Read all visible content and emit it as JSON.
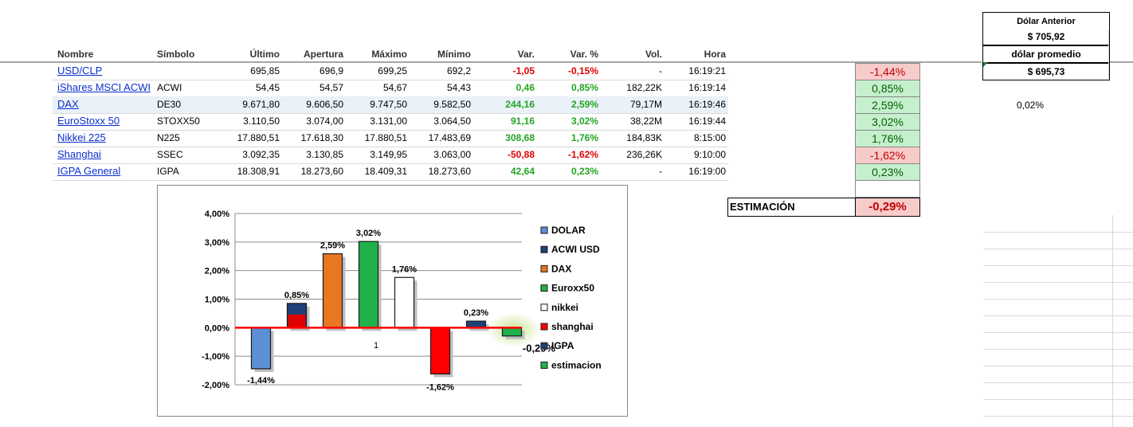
{
  "table": {
    "headers": [
      "Nombre",
      "Símbolo",
      "Último",
      "Apertura",
      "Máximo",
      "Mínimo",
      "Var.",
      "Var. %",
      "Vol.",
      "Hora"
    ],
    "rows": [
      {
        "name": "USD/CLP",
        "symbol": "",
        "last": "695,85",
        "open": "696,9",
        "high": "699,25",
        "low": "692,2",
        "var": "-1,05",
        "varp": "-0,15%",
        "vol": "-",
        "time": "16:19:21",
        "sign": "neg"
      },
      {
        "name": "iShares MSCI ACWI",
        "symbol": "ACWI",
        "last": "54,45",
        "open": "54,57",
        "high": "54,67",
        "low": "54,43",
        "var": "0,46",
        "varp": "0,85%",
        "vol": "182,22K",
        "time": "16:19:14",
        "sign": "pos"
      },
      {
        "name": "DAX",
        "symbol": "DE30",
        "last": "9.671,80",
        "open": "9.606,50",
        "high": "9.747,50",
        "low": "9.582,50",
        "var": "244,16",
        "varp": "2,59%",
        "vol": "79,17M",
        "time": "16:19:46",
        "sign": "pos"
      },
      {
        "name": "EuroStoxx 50",
        "symbol": "STOXX50",
        "last": "3.110,50",
        "open": "3.074,00",
        "high": "3.131,00",
        "low": "3.064,50",
        "var": "91,16",
        "varp": "3,02%",
        "vol": "38,22M",
        "time": "16:19:44",
        "sign": "pos"
      },
      {
        "name": "Nikkei 225",
        "symbol": "N225",
        "last": "17.880,51",
        "open": "17.618,30",
        "high": "17.880,51",
        "low": "17.483,69",
        "var": "308,68",
        "varp": "1,76%",
        "vol": "184,83K",
        "time": "8:15:00",
        "sign": "pos"
      },
      {
        "name": "Shanghai",
        "symbol": "SSEC",
        "last": "3.092,35",
        "open": "3.130,85",
        "high": "3.149,95",
        "low": "3.063,00",
        "var": "-50,88",
        "varp": "-1,62%",
        "vol": "236,26K",
        "time": "9:10:00",
        "sign": "neg"
      },
      {
        "name": "IGPA General",
        "symbol": "IGPA",
        "last": "18.308,91",
        "open": "18.273,60",
        "high": "18.409,31",
        "low": "18.273,60",
        "var": "42,64",
        "varp": "0,23%",
        "vol": "-",
        "time": "16:19:00",
        "sign": "pos"
      }
    ]
  },
  "side_values": [
    {
      "value": "-1,44%",
      "tone": "red"
    },
    {
      "value": "0,85%",
      "tone": "green"
    },
    {
      "value": "2,59%",
      "tone": "green"
    },
    {
      "value": "3,02%",
      "tone": "green"
    },
    {
      "value": "1,76%",
      "tone": "green"
    },
    {
      "value": "-1,62%",
      "tone": "red"
    },
    {
      "value": "0,23%",
      "tone": "green"
    },
    {
      "value": "",
      "tone": "blank"
    }
  ],
  "estimation": {
    "label": "ESTIMACIÓN",
    "value": "-0,29%"
  },
  "dolar_box": {
    "prev_label": "Dólar Anterior",
    "prev_value": "$ 705,92",
    "avg_label": "dólar promedio",
    "avg_value": "$ 695,73"
  },
  "side_note": "0,02%",
  "chart_data": {
    "type": "bar",
    "ylim": [
      -2,
      4
    ],
    "yticks": [
      "4,00%",
      "3,00%",
      "2,00%",
      "1,00%",
      "0,00%",
      "-1,00%",
      "-2,00%"
    ],
    "xtick": "1",
    "series": [
      {
        "name": "DOLAR",
        "values": [
          -1.44
        ],
        "label": "-1,44%",
        "color": "#5b8fd6"
      },
      {
        "name": "ACWI USD",
        "values": [
          0.85
        ],
        "label": "0,85%",
        "color": "#1f3f7a",
        "inner": "#e00000",
        "inner_value": 0.46
      },
      {
        "name": "DAX",
        "values": [
          2.59
        ],
        "label": "2,59%",
        "color": "#e87722"
      },
      {
        "name": "Euroxx50",
        "values": [
          3.02
        ],
        "label": "3,02%",
        "color": "#21b14b"
      },
      {
        "name": "nikkei",
        "values": [
          1.76
        ],
        "label": "1,76%",
        "color": "#ffffff"
      },
      {
        "name": "shanghai",
        "values": [
          -1.62
        ],
        "label": "-1,62%",
        "color": "#ff0000"
      },
      {
        "name": "IGPA",
        "values": [
          0.23
        ],
        "label": "0,23%",
        "color": "#1f3f7a"
      },
      {
        "name": "estimacion",
        "values": [
          -0.29
        ],
        "label": "-0,29%",
        "color": "#21b14b"
      }
    ]
  }
}
